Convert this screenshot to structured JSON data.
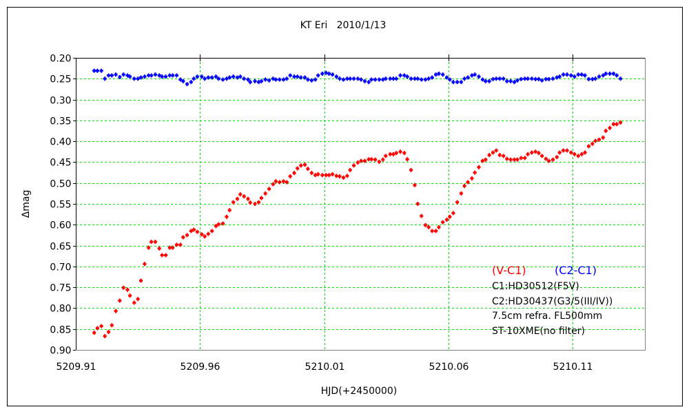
{
  "chart_data": {
    "type": "scatter",
    "title": "KT Eri   2010/1/13",
    "xlabel": "HJD(+2450000)",
    "ylabel": "Δmag",
    "xlim": [
      5209.91,
      5210.1393
    ],
    "ylim": [
      0.9,
      0.2
    ],
    "y_inverted": true,
    "grid": true,
    "x_ticks": [
      "5209.91",
      "5209.96",
      "5210.01",
      "5210.06",
      "5210.11"
    ],
    "x_tick_values": [
      5209.91,
      5209.96,
      5210.01,
      5210.06,
      5210.11
    ],
    "y_ticks": [
      "0.20",
      "0.25",
      "0.30",
      "0.35",
      "0.40",
      "0.45",
      "0.50",
      "0.55",
      "0.60",
      "0.65",
      "0.70",
      "0.75",
      "0.80",
      "0.85",
      "0.90"
    ],
    "y_tick_values": [
      0.2,
      0.25,
      0.3,
      0.35,
      0.4,
      0.45,
      0.5,
      0.55,
      0.6,
      0.65,
      0.7,
      0.75,
      0.8,
      0.85,
      0.9
    ],
    "x": [
      5209.9174,
      5209.9187,
      5209.9203,
      5209.9217,
      5209.9232,
      5209.9245,
      5209.9261,
      5209.9277,
      5209.9292,
      5209.9308,
      5209.9318,
      5209.9335,
      5209.935,
      5209.9362,
      5209.9377,
      5209.9393,
      5209.9404,
      5209.942,
      5209.9436,
      5209.9447,
      5209.9462,
      5209.9478,
      5209.949,
      5209.9506,
      5209.9521,
      5209.9532,
      5209.9548,
      5209.9564,
      5209.9575,
      5209.9589,
      5209.9607,
      5209.9619,
      5209.9633,
      5209.9648,
      5209.9664,
      5209.9675,
      5209.9692,
      5209.9707,
      5209.9719,
      5209.9734,
      5209.975,
      5209.9762,
      5209.9777,
      5209.9793,
      5209.9802,
      5209.9821,
      5209.9836,
      5209.9847,
      5209.9863,
      5209.9878,
      5209.9894,
      5209.9905,
      5209.992,
      5209.9936,
      5209.9949,
      5209.9963,
      5209.9979,
      5209.9992,
      5210.0006,
      5210.0022,
      5210.0034,
      5210.0049,
      5210.0064,
      5210.0075,
      5210.0092,
      5210.0107,
      5210.0119,
      5210.0133,
      5210.0149,
      5210.0162,
      5210.0177,
      5210.0192,
      5210.0204,
      5210.0219,
      5210.0235,
      5210.0248,
      5210.0263,
      5210.0279,
      5210.029,
      5210.0305,
      5210.0321,
      5210.0336,
      5210.0347,
      5210.0365,
      5210.0378,
      5210.039,
      5210.0406,
      5210.0422,
      5210.0434,
      5210.0449,
      5210.0464,
      5210.0476,
      5210.0491,
      5210.0507,
      5210.052,
      5210.0534,
      5210.0549,
      5210.0561,
      5210.0577,
      5210.0593,
      5210.0605,
      5210.0619,
      5210.0635,
      5210.0651,
      5210.0664,
      5210.0678,
      5210.0694,
      5210.0706,
      5210.0722,
      5210.0737,
      5210.0749,
      5210.0764,
      5210.0779,
      5210.0792,
      5210.0806,
      5210.0821,
      5210.0835,
      5210.085,
      5210.0865,
      5210.0877,
      5210.0892,
      5210.0907,
      5210.0919,
      5210.0935,
      5210.095,
      5210.0963,
      5210.0976,
      5210.0992,
      5210.1004,
      5210.102,
      5210.1036,
      5210.1047,
      5210.1062,
      5210.1077,
      5210.1093,
      5210.1107,
      5210.1122,
      5210.1136,
      5210.1149,
      5210.1164,
      5210.1179,
      5210.1191,
      5210.1206,
      5210.1222,
      5210.1233,
      5210.1249,
      5210.1264,
      5210.1277,
      5210.1292
    ],
    "series": [
      {
        "name": "(V-C1)",
        "color": "#ff0000",
        "values": [
          0.859,
          0.848,
          0.843,
          0.867,
          0.857,
          0.841,
          0.807,
          0.782,
          0.751,
          0.756,
          0.77,
          0.787,
          0.778,
          0.734,
          0.694,
          0.655,
          0.641,
          0.641,
          0.657,
          0.673,
          0.673,
          0.655,
          0.655,
          0.648,
          0.648,
          0.63,
          0.625,
          0.615,
          0.612,
          0.617,
          0.623,
          0.628,
          0.622,
          0.615,
          0.603,
          0.599,
          0.597,
          0.581,
          0.565,
          0.546,
          0.538,
          0.527,
          0.532,
          0.538,
          0.547,
          0.55,
          0.546,
          0.536,
          0.525,
          0.514,
          0.503,
          0.496,
          0.498,
          0.496,
          0.498,
          0.484,
          0.476,
          0.465,
          0.458,
          0.456,
          0.466,
          0.476,
          0.481,
          0.479,
          0.481,
          0.481,
          0.481,
          0.479,
          0.483,
          0.484,
          0.487,
          0.483,
          0.469,
          0.458,
          0.451,
          0.447,
          0.447,
          0.443,
          0.443,
          0.444,
          0.449,
          0.444,
          0.435,
          0.431,
          0.431,
          0.428,
          0.425,
          0.428,
          0.443,
          0.469,
          0.505,
          0.55,
          0.579,
          0.601,
          0.606,
          0.615,
          0.615,
          0.606,
          0.594,
          0.588,
          0.581,
          0.572,
          0.546,
          0.525,
          0.507,
          0.498,
          0.489,
          0.475,
          0.462,
          0.447,
          0.444,
          0.433,
          0.427,
          0.422,
          0.433,
          0.435,
          0.442,
          0.444,
          0.444,
          0.444,
          0.44,
          0.44,
          0.431,
          0.427,
          0.425,
          0.428,
          0.435,
          0.442,
          0.447,
          0.444,
          0.438,
          0.427,
          0.422,
          0.422,
          0.427,
          0.431,
          0.435,
          0.431,
          0.427,
          0.412,
          0.406,
          0.399,
          0.396,
          0.391,
          0.375,
          0.368,
          0.359,
          0.359,
          0.355
        ]
      },
      {
        "name": "(C2-C1)",
        "color": "#0000ff",
        "values": [
          0.231,
          0.231,
          0.231,
          0.25,
          0.242,
          0.242,
          0.24,
          0.246,
          0.24,
          0.242,
          0.245,
          0.25,
          0.25,
          0.247,
          0.245,
          0.242,
          0.242,
          0.24,
          0.242,
          0.245,
          0.245,
          0.242,
          0.242,
          0.242,
          0.252,
          0.256,
          0.263,
          0.258,
          0.25,
          0.245,
          0.245,
          0.25,
          0.247,
          0.247,
          0.245,
          0.25,
          0.252,
          0.25,
          0.247,
          0.245,
          0.247,
          0.245,
          0.25,
          0.252,
          0.258,
          0.256,
          0.258,
          0.256,
          0.252,
          0.254,
          0.25,
          0.252,
          0.252,
          0.252,
          0.25,
          0.242,
          0.245,
          0.245,
          0.247,
          0.247,
          0.252,
          0.254,
          0.252,
          0.242,
          0.238,
          0.236,
          0.238,
          0.24,
          0.245,
          0.25,
          0.252,
          0.25,
          0.25,
          0.25,
          0.25,
          0.252,
          0.256,
          0.258,
          0.252,
          0.252,
          0.252,
          0.252,
          0.25,
          0.25,
          0.25,
          0.25,
          0.242,
          0.242,
          0.245,
          0.25,
          0.25,
          0.25,
          0.252,
          0.252,
          0.25,
          0.247,
          0.24,
          0.238,
          0.24,
          0.247,
          0.252,
          0.258,
          0.258,
          0.258,
          0.25,
          0.247,
          0.242,
          0.24,
          0.245,
          0.252,
          0.256,
          0.256,
          0.251,
          0.25,
          0.25,
          0.25,
          0.256,
          0.256,
          0.258,
          0.254,
          0.251,
          0.25,
          0.25,
          0.25,
          0.251,
          0.251,
          0.254,
          0.251,
          0.251,
          0.25,
          0.247,
          0.245,
          0.24,
          0.24,
          0.242,
          0.245,
          0.24,
          0.24,
          0.242,
          0.251,
          0.251,
          0.25,
          0.245,
          0.242,
          0.238,
          0.238,
          0.238,
          0.242,
          0.25
        ]
      }
    ],
    "annotations": [
      "C1:HD30512(F5V)",
      "C2:HD30437(G3/5(III/IV))",
      "7.5cm refra. FL500mm",
      "ST-10XME(no filter)"
    ],
    "legend_placement": "bottom-right",
    "grid_color": "#00e000"
  }
}
